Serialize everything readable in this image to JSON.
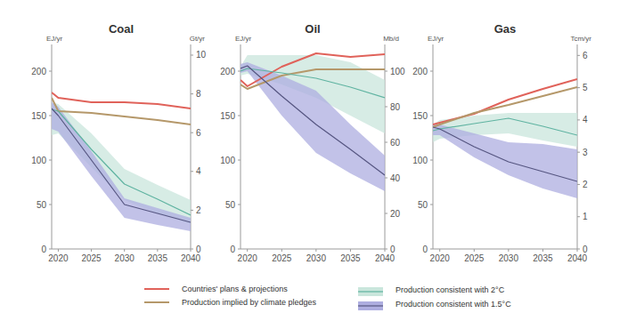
{
  "chart_data": [
    {
      "type": "line",
      "title": "Coal",
      "ylabel": "EJ/yr",
      "y2label": "Gt/yr",
      "x": [
        2019,
        2020,
        2025,
        2030,
        2035,
        2040
      ],
      "xlim": [
        2019,
        2040
      ],
      "xticks": [
        2020,
        2025,
        2030,
        2035,
        2040
      ],
      "ylim": [
        0,
        230
      ],
      "yticks": [
        0,
        50,
        100,
        150,
        200
      ],
      "y2lim": [
        0,
        10.55
      ],
      "y2ticks": [
        0,
        2,
        4,
        6,
        8,
        10
      ],
      "legend": "bottom",
      "series": [
        {
          "name": "Countries' plans & projections",
          "color": "#e0625a",
          "line_style": "solid",
          "values": [
            176,
            170,
            165,
            165,
            163,
            158
          ]
        },
        {
          "name": "Production implied by climate pledges",
          "color": "#b5986a",
          "line_style": "solid",
          "values": [
            170,
            155,
            153,
            149,
            145,
            140
          ]
        },
        {
          "name": "Production consistent with 2°C",
          "color": "#5fb3a1",
          "band_color": "#c9e6dc",
          "line_style": "solid",
          "values": [
            157,
            155,
            112,
            73,
            56,
            38
          ],
          "low": [
            128,
            130,
            92,
            55,
            40,
            28
          ],
          "high": [
            165,
            163,
            130,
            90,
            72,
            55
          ]
        },
        {
          "name": "Production consistent with 1.5°C",
          "color": "#555580",
          "band_color": "#aeaee0",
          "line_style": "solid",
          "values": [
            158,
            150,
            100,
            50,
            40,
            30
          ],
          "low": [
            135,
            132,
            82,
            35,
            27,
            20
          ],
          "high": [
            165,
            160,
            110,
            57,
            46,
            35
          ]
        }
      ]
    },
    {
      "type": "line",
      "title": "Oil",
      "ylabel": "EJ/yr",
      "y2label": "Mb/d",
      "x": [
        2019,
        2020,
        2025,
        2030,
        2035,
        2040
      ],
      "xlim": [
        2019,
        2040
      ],
      "xticks": [
        2020,
        2025,
        2030,
        2035,
        2040
      ],
      "ylim": [
        0,
        230
      ],
      "yticks": [
        0,
        50,
        100,
        150,
        200
      ],
      "y2lim": [
        0,
        115
      ],
      "y2ticks": [
        0,
        20,
        40,
        60,
        80,
        100
      ],
      "series": [
        {
          "name": "Countries' plans & projections",
          "color": "#e0625a",
          "line_style": "solid",
          "values": [
            190,
            183,
            205,
            220,
            216,
            219
          ]
        },
        {
          "name": "Production implied by climate pledges",
          "color": "#b5986a",
          "line_style": "solid",
          "values": [
            185,
            180,
            195,
            202,
            202,
            202
          ]
        },
        {
          "name": "Production consistent with 2°C",
          "color": "#5fb3a1",
          "band_color": "#c9e6dc",
          "line_style": "solid",
          "values": [
            200,
            203,
            198,
            192,
            182,
            170
          ],
          "low": [
            195,
            197,
            185,
            170,
            150,
            130
          ],
          "high": [
            205,
            218,
            218,
            218,
            210,
            190
          ]
        },
        {
          "name": "Production consistent with 1.5°C",
          "color": "#555580",
          "band_color": "#aeaee0",
          "line_style": "solid",
          "values": [
            203,
            206,
            172,
            140,
            112,
            83
          ],
          "low": [
            198,
            200,
            150,
            108,
            85,
            65
          ],
          "high": [
            208,
            210,
            195,
            178,
            140,
            105
          ]
        }
      ]
    },
    {
      "type": "line",
      "title": "Gas",
      "ylabel": "EJ/yr",
      "y2label": "Tcm/yr",
      "x": [
        2019,
        2020,
        2025,
        2030,
        2035,
        2040
      ],
      "xlim": [
        2019,
        2040
      ],
      "xticks": [
        2020,
        2025,
        2030,
        2035,
        2040
      ],
      "ylim": [
        0,
        230
      ],
      "yticks": [
        0,
        50,
        100,
        150,
        200
      ],
      "y2lim": [
        0,
        6.34
      ],
      "y2ticks": [
        0,
        1,
        2,
        3,
        4,
        5,
        6
      ],
      "series": [
        {
          "name": "Countries' plans & projections",
          "color": "#e0625a",
          "line_style": "solid",
          "values": [
            140,
            142,
            152,
            168,
            180,
            191
          ]
        },
        {
          "name": "Production implied by climate pledges",
          "color": "#b5986a",
          "line_style": "solid",
          "values": [
            137,
            140,
            153,
            162,
            172,
            182
          ]
        },
        {
          "name": "Production consistent with 2°C",
          "color": "#5fb3a1",
          "band_color": "#c9e6dc",
          "line_style": "solid",
          "values": [
            133,
            135,
            141,
            147,
            138,
            128
          ],
          "low": [
            120,
            124,
            128,
            130,
            122,
            115
          ],
          "high": [
            140,
            145,
            150,
            153,
            153,
            153
          ]
        },
        {
          "name": "Production consistent with 1.5°C",
          "color": "#555580",
          "band_color": "#aeaee0",
          "line_style": "solid",
          "values": [
            137,
            135,
            115,
            98,
            87,
            76
          ],
          "low": [
            128,
            128,
            103,
            83,
            68,
            57
          ],
          "high": [
            140,
            140,
            130,
            120,
            118,
            112
          ]
        }
      ]
    }
  ]
}
